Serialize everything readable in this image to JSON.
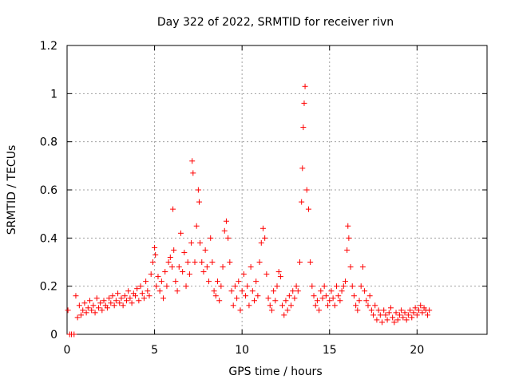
{
  "chart_data": {
    "type": "scatter",
    "title": "Day 322 of 2022, SRMTID for receiver rivn",
    "xlabel": "GPS time / hours",
    "ylabel": "SRMTID / TECUs",
    "xlim": [
      0,
      24
    ],
    "ylim": [
      0,
      1.2
    ],
    "xticks": [
      0,
      5,
      10,
      15,
      20
    ],
    "yticks": [
      0,
      0.2,
      0.4,
      0.6,
      0.8,
      1,
      1.2
    ],
    "xtick_labels": [
      "0",
      "5",
      "10",
      "15",
      "20"
    ],
    "ytick_labels": [
      "0",
      "0.2",
      "0.4",
      "0.6",
      "0.8",
      "1",
      "1.2"
    ],
    "grid": true,
    "marker": "+",
    "color": "#ff0000",
    "series": [
      {
        "name": "rivn",
        "x": [
          0.05,
          0.15,
          0.25,
          0.4,
          0.5,
          0.6,
          0.7,
          0.8,
          0.9,
          1.0,
          1.1,
          1.2,
          1.3,
          1.4,
          1.5,
          1.6,
          1.7,
          1.8,
          1.9,
          2.0,
          2.1,
          2.2,
          2.3,
          2.4,
          2.5,
          2.6,
          2.7,
          2.8,
          2.9,
          3.0,
          3.1,
          3.2,
          3.3,
          3.4,
          3.5,
          3.6,
          3.7,
          3.8,
          3.9,
          4.0,
          4.1,
          4.2,
          4.3,
          4.4,
          4.5,
          4.6,
          4.7,
          4.8,
          4.9,
          5.0,
          5.05,
          5.1,
          5.2,
          5.3,
          5.4,
          5.5,
          5.6,
          5.7,
          5.8,
          5.9,
          6.0,
          6.05,
          6.1,
          6.2,
          6.3,
          6.4,
          6.5,
          6.6,
          6.7,
          6.8,
          6.9,
          7.0,
          7.1,
          7.15,
          7.2,
          7.3,
          7.4,
          7.5,
          7.55,
          7.6,
          7.7,
          7.8,
          7.9,
          8.0,
          8.1,
          8.2,
          8.3,
          8.4,
          8.5,
          8.6,
          8.7,
          8.8,
          8.9,
          9.0,
          9.1,
          9.2,
          9.3,
          9.4,
          9.5,
          9.6,
          9.7,
          9.8,
          9.9,
          10.0,
          10.1,
          10.2,
          10.3,
          10.4,
          10.5,
          10.6,
          10.7,
          10.8,
          10.9,
          11.0,
          11.1,
          11.2,
          11.3,
          11.4,
          11.5,
          11.6,
          11.7,
          11.8,
          11.9,
          12.0,
          12.1,
          12.2,
          12.3,
          12.4,
          12.5,
          12.6,
          12.7,
          12.8,
          12.9,
          13.0,
          13.1,
          13.2,
          13.3,
          13.4,
          13.45,
          13.5,
          13.55,
          13.6,
          13.7,
          13.8,
          13.9,
          14.0,
          14.1,
          14.2,
          14.3,
          14.4,
          14.5,
          14.6,
          14.7,
          14.8,
          14.9,
          15.0,
          15.1,
          15.2,
          15.3,
          15.4,
          15.5,
          15.6,
          15.7,
          15.8,
          15.9,
          16.0,
          16.05,
          16.1,
          16.2,
          16.3,
          16.4,
          16.5,
          16.6,
          16.7,
          16.8,
          16.9,
          17.0,
          17.1,
          17.2,
          17.3,
          17.4,
          17.5,
          17.6,
          17.7,
          17.8,
          17.9,
          18.0,
          18.1,
          18.2,
          18.3,
          18.4,
          18.5,
          18.6,
          18.7,
          18.8,
          18.9,
          19.0,
          19.1,
          19.2,
          19.3,
          19.4,
          19.5,
          19.6,
          19.7,
          19.8,
          19.9,
          20.0,
          20.1,
          20.2,
          20.3,
          20.4,
          20.5,
          20.6,
          20.7
        ],
        "y": [
          0.1,
          0.0,
          0.0,
          0.0,
          0.16,
          0.07,
          0.12,
          0.08,
          0.1,
          0.13,
          0.09,
          0.11,
          0.14,
          0.1,
          0.12,
          0.09,
          0.15,
          0.11,
          0.13,
          0.1,
          0.14,
          0.12,
          0.11,
          0.15,
          0.13,
          0.16,
          0.12,
          0.14,
          0.17,
          0.13,
          0.15,
          0.12,
          0.16,
          0.14,
          0.18,
          0.15,
          0.13,
          0.17,
          0.16,
          0.19,
          0.14,
          0.2,
          0.17,
          0.15,
          0.22,
          0.18,
          0.16,
          0.25,
          0.3,
          0.36,
          0.33,
          0.2,
          0.24,
          0.18,
          0.22,
          0.15,
          0.26,
          0.2,
          0.3,
          0.32,
          0.28,
          0.52,
          0.35,
          0.22,
          0.18,
          0.28,
          0.42,
          0.26,
          0.34,
          0.2,
          0.3,
          0.25,
          0.38,
          0.72,
          0.67,
          0.3,
          0.45,
          0.6,
          0.55,
          0.38,
          0.3,
          0.26,
          0.35,
          0.28,
          0.22,
          0.4,
          0.3,
          0.18,
          0.16,
          0.22,
          0.14,
          0.2,
          0.28,
          0.43,
          0.47,
          0.4,
          0.3,
          0.18,
          0.12,
          0.2,
          0.15,
          0.22,
          0.1,
          0.18,
          0.25,
          0.16,
          0.2,
          0.12,
          0.28,
          0.18,
          0.14,
          0.22,
          0.16,
          0.3,
          0.38,
          0.44,
          0.4,
          0.25,
          0.15,
          0.12,
          0.1,
          0.18,
          0.14,
          0.2,
          0.26,
          0.24,
          0.12,
          0.08,
          0.14,
          0.1,
          0.16,
          0.12,
          0.18,
          0.15,
          0.2,
          0.18,
          0.3,
          0.55,
          0.69,
          0.86,
          0.96,
          1.03,
          0.6,
          0.52,
          0.3,
          0.2,
          0.16,
          0.12,
          0.14,
          0.1,
          0.18,
          0.15,
          0.2,
          0.16,
          0.12,
          0.14,
          0.18,
          0.15,
          0.12,
          0.2,
          0.16,
          0.14,
          0.18,
          0.2,
          0.22,
          0.35,
          0.45,
          0.4,
          0.28,
          0.2,
          0.16,
          0.12,
          0.1,
          0.14,
          0.2,
          0.28,
          0.18,
          0.14,
          0.12,
          0.16,
          0.1,
          0.08,
          0.12,
          0.06,
          0.1,
          0.08,
          0.05,
          0.1,
          0.08,
          0.06,
          0.09,
          0.11,
          0.07,
          0.05,
          0.09,
          0.06,
          0.08,
          0.1,
          0.07,
          0.09,
          0.06,
          0.08,
          0.1,
          0.07,
          0.09,
          0.11,
          0.08,
          0.1,
          0.12,
          0.09,
          0.11,
          0.1,
          0.08,
          0.1
        ]
      }
    ]
  }
}
